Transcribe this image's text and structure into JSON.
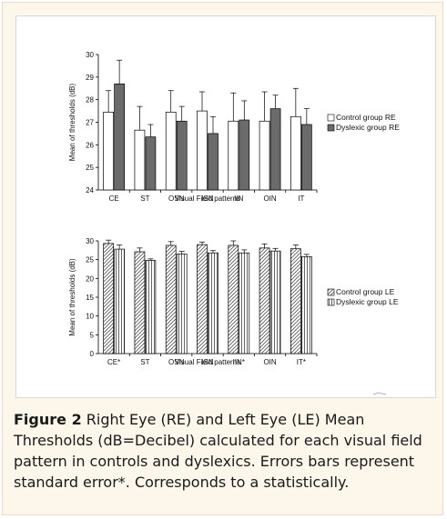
{
  "caption": {
    "label": "Figure 2",
    "text": " Right Eye (RE) and Left Eye (LE) Mean Thresholds (dB=Decibel) calculated for each visual field pattern in controls and dyslexics. Errors bars represent standard error*. Corresponds to a statistically."
  },
  "chart_data": [
    {
      "type": "bar",
      "xlabel": "Visual Field patterns",
      "ylabel": "Mean of thresholds (dB)",
      "ylim": [
        24,
        30
      ],
      "yticks": [
        24,
        25,
        26,
        27,
        28,
        29,
        30
      ],
      "categories": [
        "CE",
        "ST",
        "OSN",
        "ISN",
        "IIN",
        "OIN",
        "IT"
      ],
      "legend_position": "right",
      "series": [
        {
          "name": "Control group RE",
          "fill": "#ffffff",
          "values": [
            27.45,
            26.65,
            27.45,
            27.5,
            27.05,
            27.05,
            27.25
          ],
          "errors": [
            0.95,
            1.05,
            0.95,
            0.85,
            1.25,
            1.3,
            1.25
          ]
        },
        {
          "name": "Dyslexic group RE",
          "fill": "#6b6b6b",
          "values": [
            28.7,
            26.35,
            27.05,
            26.5,
            27.1,
            27.6,
            26.9
          ],
          "errors": [
            1.05,
            0.55,
            0.65,
            0.75,
            0.85,
            0.6,
            0.7
          ]
        }
      ]
    },
    {
      "type": "bar",
      "xlabel": "Visual Field patterns",
      "ylabel": "Mean of thresholds (dB)",
      "ylim": [
        0,
        30
      ],
      "yticks": [
        0,
        5,
        10,
        15,
        20,
        25,
        30
      ],
      "categories": [
        "CE*",
        "ST",
        "OSN",
        "ISN",
        "IIN*",
        "OIN",
        "IT*"
      ],
      "legend_position": "right",
      "series": [
        {
          "name": "Control group LE",
          "fill": "diagonal-hatch",
          "values": [
            29.3,
            27.1,
            28.8,
            29.0,
            28.8,
            28.1,
            27.9
          ],
          "errors": [
            0.9,
            1.0,
            1.0,
            0.7,
            1.2,
            1.1,
            1.0
          ]
        },
        {
          "name": "Dyslexic group LE",
          "fill": "vertical-hatch",
          "values": [
            27.8,
            24.8,
            26.5,
            26.8,
            26.8,
            27.3,
            25.8
          ],
          "errors": [
            1.1,
            0.4,
            0.7,
            0.6,
            0.8,
            0.7,
            0.6
          ]
        }
      ]
    }
  ]
}
